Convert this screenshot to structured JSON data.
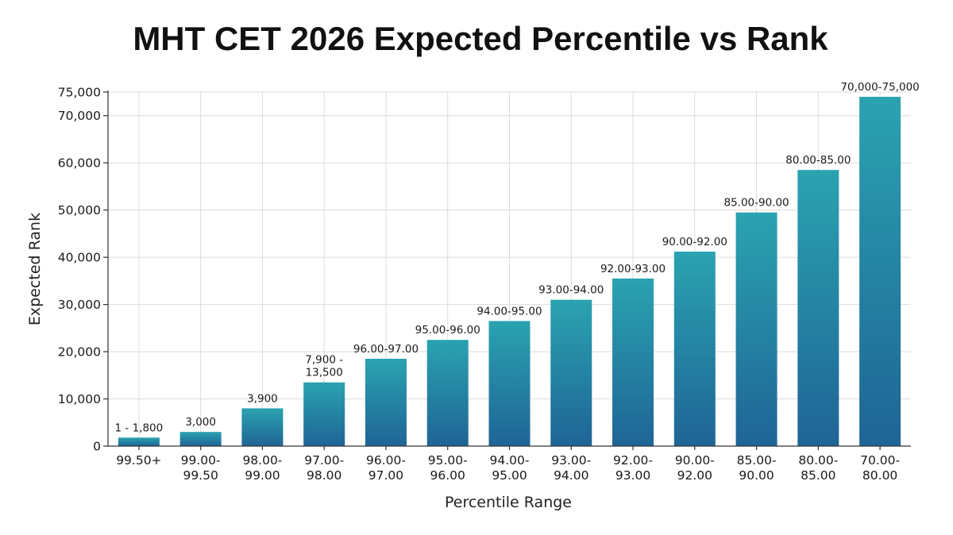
{
  "chart_data": {
    "type": "bar",
    "title": "MHT CET 2026 Expected Percentile vs Rank",
    "xlabel": "Percentile Range",
    "ylabel": "Expected Rank",
    "ylim": [
      0,
      75000
    ],
    "yticks": [
      0,
      10000,
      20000,
      30000,
      40000,
      50000,
      60000,
      70000,
      75000
    ],
    "ytick_labels": [
      "0",
      "10,000",
      "20,000",
      "30,000",
      "40,000",
      "50,000",
      "60,000",
      "70,000",
      "75,000"
    ],
    "grid": true,
    "categories": [
      [
        "99.50+"
      ],
      [
        "99.00-",
        "99.50"
      ],
      [
        "98.00-",
        "99.00"
      ],
      [
        "97.00-",
        "98.00"
      ],
      [
        "96.00-",
        "97.00"
      ],
      [
        "95.00-",
        "96.00"
      ],
      [
        "94.00-",
        "95.00"
      ],
      [
        "93.00-",
        "94.00"
      ],
      [
        "92.00-",
        "93.00"
      ],
      [
        "90.00-",
        "92.00"
      ],
      [
        "85.00-",
        "90.00"
      ],
      [
        "80.00-",
        "85.00"
      ],
      [
        "70.00-",
        "80.00"
      ]
    ],
    "values": [
      1800,
      3000,
      8000,
      13500,
      18500,
      22500,
      26500,
      31000,
      35500,
      41200,
      49500,
      58500,
      74000
    ],
    "data_labels": [
      [
        "1 - 1,800"
      ],
      [
        "3,000"
      ],
      [
        "3,900"
      ],
      [
        "7,900 -",
        "13,500"
      ],
      [
        "96.00-97.00"
      ],
      [
        "95.00-96.00"
      ],
      [
        "94.00-95.00"
      ],
      [
        "93.00-94.00"
      ],
      [
        "92.00-93.00"
      ],
      [
        "90.00-92.00"
      ],
      [
        "85.00-90.00"
      ],
      [
        "80.00-85.00"
      ],
      [
        "70,000-75,000"
      ]
    ],
    "colors": {
      "bar_top": "#2aa3b0",
      "bar_bottom": "#1f6496"
    }
  }
}
